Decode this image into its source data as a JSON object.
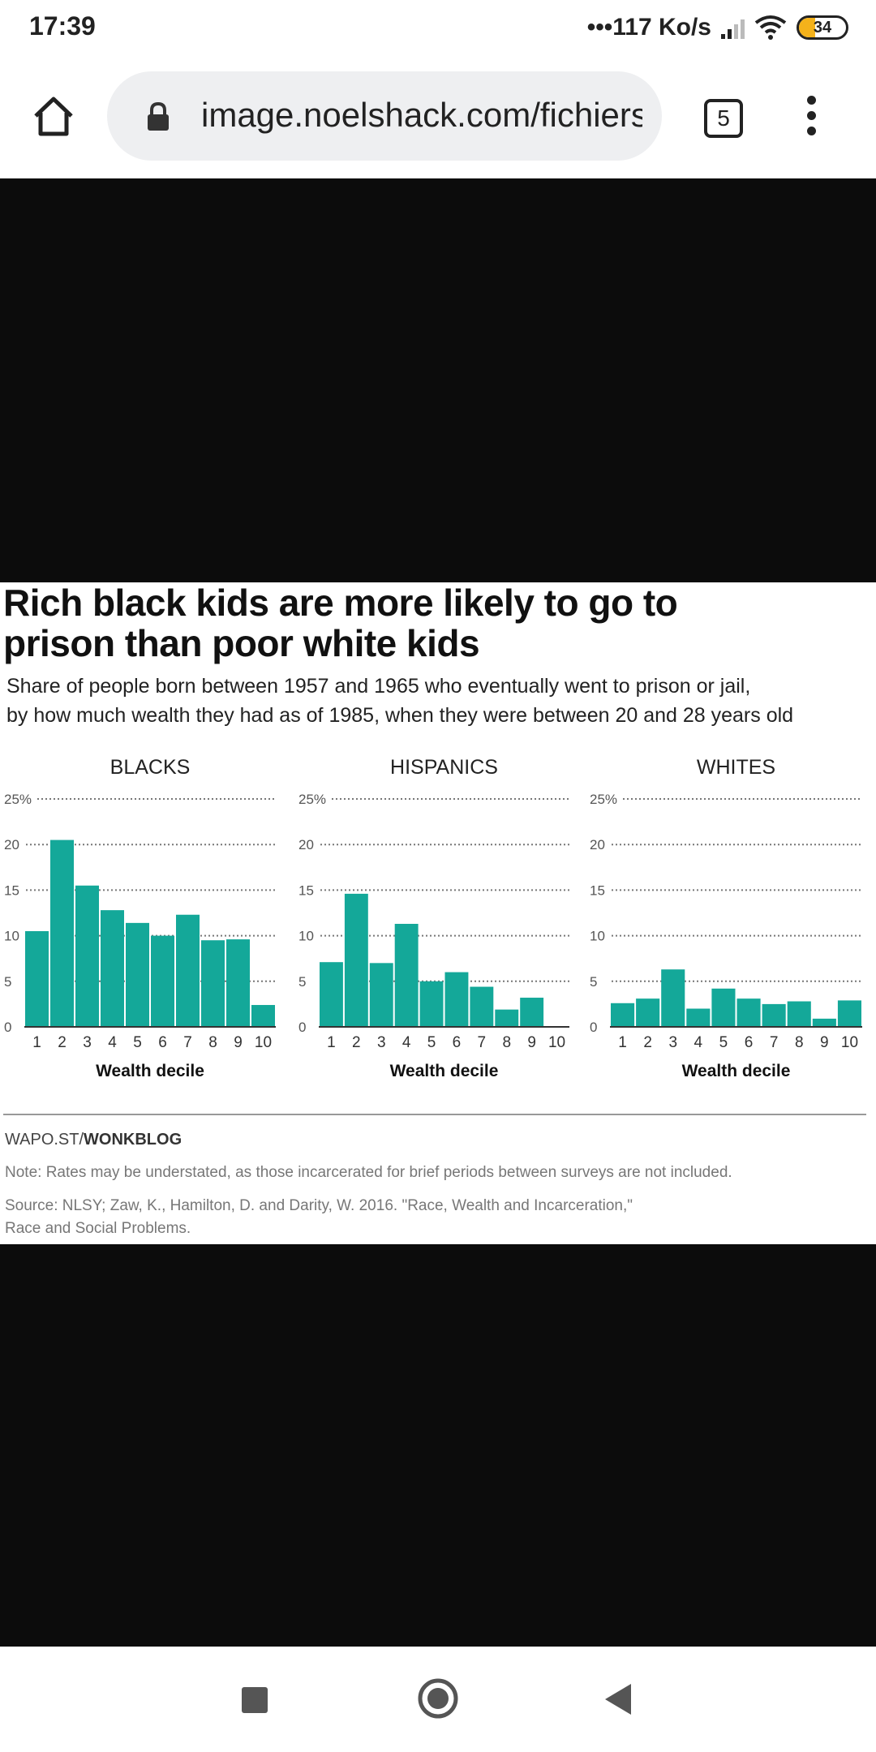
{
  "status_bar": {
    "time": "17:39",
    "net_speed": "117 Ko/s",
    "battery_level": "34"
  },
  "browser": {
    "url": "image.noelshack.com/fichiers",
    "tab_count": "5"
  },
  "image": {
    "headline_line1": "Rich black kids are more likely to go to",
    "headline_line2": "prison than poor white kids",
    "subhead_line1": "Share of people born between 1957 and 1965 who eventually went to prison or jail,",
    "subhead_line2": "by how much wealth they had as of 1985, when they were between 20 and 28 years old",
    "source_brand_prefix": "WAPO.ST/",
    "source_brand_name": "WONKBLOG",
    "note": "Note: Rates may be understated, as those incarcerated for brief periods between surveys are not included.",
    "source_line1": "Source: NLSY; Zaw, K., Hamilton, D. and Darity, W. 2016. \"Race, Wealth and Incarceration,\"",
    "source_line2": "Race and Social Problems."
  },
  "chart_data": [
    {
      "type": "bar",
      "title": "BLACKS",
      "xlabel": "Wealth decile",
      "ylabel": "",
      "categories": [
        "1",
        "2",
        "3",
        "4",
        "5",
        "6",
        "7",
        "8",
        "9",
        "10"
      ],
      "values": [
        10.5,
        20.5,
        15.5,
        12.8,
        11.4,
        10.0,
        12.3,
        9.5,
        9.6,
        2.4
      ],
      "ylim": [
        0,
        25
      ],
      "yticks": [
        "0",
        "5",
        "10",
        "15",
        "20",
        "25%"
      ],
      "grid": true,
      "bar_color": "#14a899"
    },
    {
      "type": "bar",
      "title": "HISPANICS",
      "xlabel": "Wealth decile",
      "ylabel": "",
      "categories": [
        "1",
        "2",
        "3",
        "4",
        "5",
        "6",
        "7",
        "8",
        "9",
        "10"
      ],
      "values": [
        7.1,
        14.6,
        7.0,
        11.3,
        5.0,
        6.0,
        4.4,
        1.9,
        3.2,
        0
      ],
      "ylim": [
        0,
        25
      ],
      "yticks": [
        "0",
        "5",
        "10",
        "15",
        "20",
        "25%"
      ],
      "grid": true,
      "bar_color": "#14a899"
    },
    {
      "type": "bar",
      "title": "WHITES",
      "xlabel": "Wealth decile",
      "ylabel": "",
      "categories": [
        "1",
        "2",
        "3",
        "4",
        "5",
        "6",
        "7",
        "8",
        "9",
        "10"
      ],
      "values": [
        2.6,
        3.1,
        6.3,
        2.0,
        4.2,
        3.1,
        2.5,
        2.8,
        0.9,
        2.9
      ],
      "ylim": [
        0,
        25
      ],
      "yticks": [
        "0",
        "5",
        "10",
        "15",
        "20",
        "25%"
      ],
      "grid": true,
      "bar_color": "#14a899"
    }
  ]
}
